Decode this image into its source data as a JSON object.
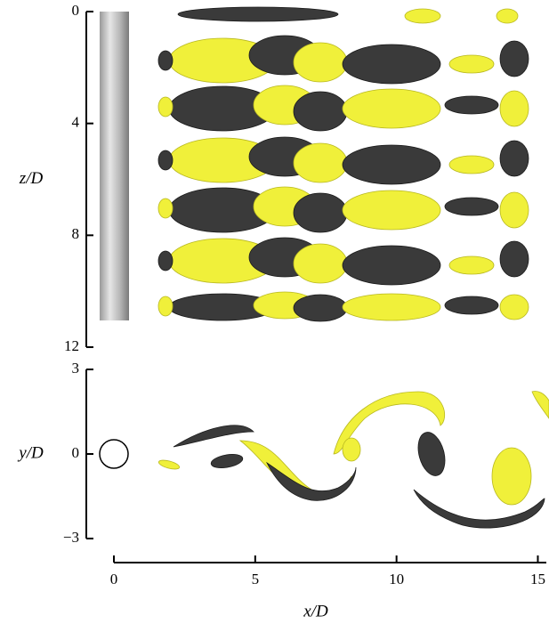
{
  "chart_data": [
    {
      "type": "isosurface",
      "ylabel": "z/D",
      "ylim": [
        12,
        0
      ],
      "yticks": [
        0,
        4,
        8,
        12
      ]
    },
    {
      "type": "isosurface",
      "ylabel": "y/D",
      "ylim": [
        -3,
        3
      ],
      "yticks": [
        {
          "value": -3,
          "label": "−3"
        },
        0,
        3
      ],
      "xlabel": "x/D",
      "xlim": [
        0,
        15.3
      ],
      "xticks": [
        0,
        5,
        10,
        15
      ]
    }
  ]
}
